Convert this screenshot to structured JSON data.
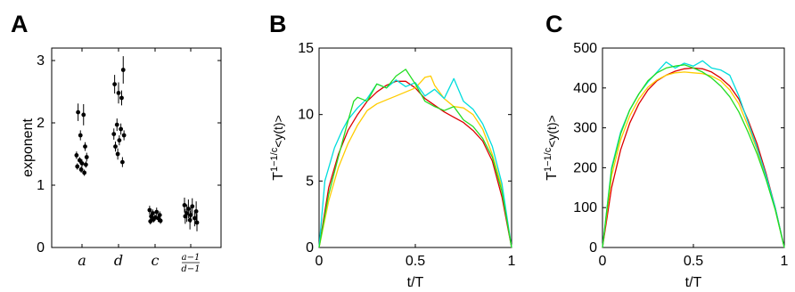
{
  "chart_data": [
    {
      "panel_label": "A",
      "type": "scatter",
      "ylabel": "exponent",
      "ylim": [
        0,
        3.2
      ],
      "yticks": [
        0,
        1,
        2,
        3
      ],
      "categories": [
        "a",
        "d",
        "c",
        "(a-1)/(d-1)"
      ],
      "category_labels": [
        {
          "text": "a"
        },
        {
          "text": "d"
        },
        {
          "text": "c"
        },
        {
          "num": "a−1",
          "den": "d−1"
        }
      ],
      "points": [
        {
          "cat": 0,
          "dx": -0.05,
          "y": 2.17,
          "err": 0.14
        },
        {
          "cat": 0,
          "dx": 0.02,
          "y": 2.13,
          "err": 0.17
        },
        {
          "cat": 0,
          "dx": -0.02,
          "y": 1.8,
          "err": 0.08
        },
        {
          "cat": 0,
          "dx": 0.04,
          "y": 1.62,
          "err": 0.07
        },
        {
          "cat": 0,
          "dx": -0.07,
          "y": 1.48,
          "err": 0.06
        },
        {
          "cat": 0,
          "dx": 0.06,
          "y": 1.45,
          "err": 0.07
        },
        {
          "cat": 0,
          "dx": -0.03,
          "y": 1.4,
          "err": 0.05
        },
        {
          "cat": 0,
          "dx": 0.0,
          "y": 1.35,
          "err": 0.06
        },
        {
          "cat": 0,
          "dx": -0.06,
          "y": 1.3,
          "err": 0.05
        },
        {
          "cat": 0,
          "dx": 0.05,
          "y": 1.33,
          "err": 0.05
        },
        {
          "cat": 0,
          "dx": -0.01,
          "y": 1.25,
          "err": 0.05
        },
        {
          "cat": 0,
          "dx": 0.03,
          "y": 1.2,
          "err": 0.05
        },
        {
          "cat": 1,
          "dx": -0.05,
          "y": 2.62,
          "err": 0.15
        },
        {
          "cat": 1,
          "dx": 0.06,
          "y": 2.85,
          "err": 0.22
        },
        {
          "cat": 1,
          "dx": 0.0,
          "y": 2.48,
          "err": 0.17
        },
        {
          "cat": 1,
          "dx": 0.04,
          "y": 2.4,
          "err": 0.12
        },
        {
          "cat": 1,
          "dx": -0.02,
          "y": 1.97,
          "err": 0.1
        },
        {
          "cat": 1,
          "dx": 0.03,
          "y": 1.9,
          "err": 0.09
        },
        {
          "cat": 1,
          "dx": -0.06,
          "y": 1.82,
          "err": 0.09
        },
        {
          "cat": 1,
          "dx": 0.07,
          "y": 1.8,
          "err": 0.08
        },
        {
          "cat": 1,
          "dx": 0.01,
          "y": 1.72,
          "err": 0.08
        },
        {
          "cat": 1,
          "dx": -0.04,
          "y": 1.62,
          "err": 0.08
        },
        {
          "cat": 1,
          "dx": -0.01,
          "y": 1.5,
          "err": 0.09
        },
        {
          "cat": 1,
          "dx": 0.05,
          "y": 1.37,
          "err": 0.08
        },
        {
          "cat": 2,
          "dx": -0.07,
          "y": 0.6,
          "err": 0.07
        },
        {
          "cat": 2,
          "dx": -0.03,
          "y": 0.55,
          "err": 0.06
        },
        {
          "cat": 2,
          "dx": 0.02,
          "y": 0.57,
          "err": 0.07
        },
        {
          "cat": 2,
          "dx": 0.06,
          "y": 0.52,
          "err": 0.06
        },
        {
          "cat": 2,
          "dx": -0.05,
          "y": 0.5,
          "err": 0.05
        },
        {
          "cat": 2,
          "dx": 0.0,
          "y": 0.48,
          "err": 0.05
        },
        {
          "cat": 2,
          "dx": 0.04,
          "y": 0.47,
          "err": 0.06
        },
        {
          "cat": 2,
          "dx": -0.02,
          "y": 0.45,
          "err": 0.05
        },
        {
          "cat": 2,
          "dx": 0.07,
          "y": 0.43,
          "err": 0.05
        },
        {
          "cat": 2,
          "dx": -0.06,
          "y": 0.42,
          "err": 0.05
        },
        {
          "cat": 3,
          "dx": -0.08,
          "y": 0.68,
          "err": 0.12
        },
        {
          "cat": 3,
          "dx": -0.03,
          "y": 0.62,
          "err": 0.15
        },
        {
          "cat": 3,
          "dx": 0.02,
          "y": 0.66,
          "err": 0.13
        },
        {
          "cat": 3,
          "dx": 0.07,
          "y": 0.58,
          "err": 0.16
        },
        {
          "cat": 3,
          "dx": -0.05,
          "y": 0.55,
          "err": 0.14
        },
        {
          "cat": 3,
          "dx": 0.0,
          "y": 0.52,
          "err": 0.12
        },
        {
          "cat": 3,
          "dx": 0.05,
          "y": 0.47,
          "err": 0.13
        },
        {
          "cat": 3,
          "dx": -0.01,
          "y": 0.44,
          "err": 0.15
        },
        {
          "cat": 3,
          "dx": 0.08,
          "y": 0.4,
          "err": 0.14
        },
        {
          "cat": 3,
          "dx": -0.07,
          "y": 0.5,
          "err": 0.12
        }
      ]
    },
    {
      "panel_label": "B",
      "type": "line",
      "xlabel": "t/T",
      "ylabel_main": "T",
      "ylabel_sup": "1−1/c",
      "ylabel_rest": "<y(t)>",
      "xlim": [
        0,
        1
      ],
      "ylim": [
        0,
        15
      ],
      "xticks": [
        0,
        0.5,
        1
      ],
      "xtick_labels": [
        "0",
        "0.5",
        "1"
      ],
      "yticks": [
        0,
        5,
        10,
        15
      ],
      "series": [
        {
          "color": "#dd0000",
          "x": [
            0,
            0.05,
            0.1,
            0.15,
            0.2,
            0.25,
            0.3,
            0.35,
            0.4,
            0.45,
            0.5,
            0.55,
            0.6,
            0.65,
            0.7,
            0.75,
            0.8,
            0.85,
            0.9,
            0.95,
            1.0
          ],
          "y": [
            0,
            4.5,
            7.0,
            8.8,
            10.0,
            11.0,
            11.7,
            12.2,
            12.5,
            12.5,
            12.0,
            11.2,
            10.7,
            10.2,
            9.8,
            9.4,
            8.8,
            8.0,
            6.5,
            3.8,
            0
          ]
        },
        {
          "color": "#ffcc00",
          "x": [
            0,
            0.05,
            0.1,
            0.15,
            0.2,
            0.25,
            0.3,
            0.35,
            0.4,
            0.45,
            0.5,
            0.55,
            0.58,
            0.6,
            0.65,
            0.7,
            0.75,
            0.8,
            0.85,
            0.9,
            0.95,
            1.0
          ],
          "y": [
            0,
            3.5,
            6.0,
            7.8,
            9.2,
            10.3,
            10.8,
            11.1,
            11.4,
            11.7,
            12.0,
            12.8,
            12.9,
            12.2,
            11.2,
            10.6,
            10.5,
            10.0,
            8.9,
            7.0,
            4.5,
            0
          ]
        },
        {
          "color": "#00dddd",
          "x": [
            0,
            0.03,
            0.08,
            0.12,
            0.15,
            0.2,
            0.25,
            0.3,
            0.35,
            0.4,
            0.45,
            0.5,
            0.55,
            0.6,
            0.65,
            0.7,
            0.75,
            0.8,
            0.85,
            0.9,
            0.95,
            1.0
          ],
          "y": [
            0,
            5.0,
            7.5,
            8.8,
            9.6,
            10.5,
            11.2,
            12.3,
            12.0,
            12.6,
            12.1,
            12.4,
            11.4,
            11.9,
            11.2,
            12.7,
            11.0,
            10.4,
            9.3,
            7.6,
            4.8,
            0
          ]
        },
        {
          "color": "#22dd22",
          "x": [
            0,
            0.05,
            0.1,
            0.15,
            0.18,
            0.2,
            0.25,
            0.3,
            0.35,
            0.4,
            0.45,
            0.5,
            0.55,
            0.6,
            0.65,
            0.7,
            0.75,
            0.8,
            0.85,
            0.9,
            0.95,
            1.0
          ],
          "y": [
            0,
            4.0,
            6.8,
            9.5,
            11.0,
            11.3,
            11.0,
            12.3,
            12.0,
            12.9,
            13.4,
            12.3,
            11.0,
            10.6,
            10.3,
            10.6,
            9.6,
            9.1,
            8.2,
            6.8,
            4.2,
            0
          ]
        }
      ]
    },
    {
      "panel_label": "C",
      "type": "line",
      "xlabel": "t/T",
      "ylabel_main": "T",
      "ylabel_sup": "1−1/c",
      "ylabel_rest": "<y(t)>",
      "xlim": [
        0,
        1
      ],
      "ylim": [
        0,
        500
      ],
      "xticks": [
        0,
        0.5,
        1
      ],
      "xtick_labels": [
        "0",
        "0.5",
        "1"
      ],
      "yticks": [
        0,
        100,
        200,
        300,
        400,
        500
      ],
      "series": [
        {
          "color": "#dd0000",
          "x": [
            0,
            0.05,
            0.1,
            0.15,
            0.2,
            0.25,
            0.3,
            0.35,
            0.4,
            0.45,
            0.5,
            0.55,
            0.6,
            0.65,
            0.7,
            0.75,
            0.8,
            0.85,
            0.9,
            0.95,
            1.0
          ],
          "y": [
            0,
            150,
            245,
            312,
            360,
            395,
            418,
            432,
            442,
            448,
            450,
            448,
            440,
            425,
            405,
            372,
            320,
            260,
            185,
            100,
            0
          ]
        },
        {
          "color": "#ffcc00",
          "x": [
            0,
            0.05,
            0.1,
            0.15,
            0.2,
            0.25,
            0.3,
            0.35,
            0.4,
            0.45,
            0.5,
            0.55,
            0.6,
            0.65,
            0.7,
            0.75,
            0.8,
            0.85,
            0.9,
            0.95,
            1.0
          ],
          "y": [
            0,
            180,
            270,
            330,
            372,
            402,
            420,
            432,
            438,
            440,
            438,
            436,
            430,
            418,
            395,
            360,
            305,
            245,
            175,
            95,
            0
          ]
        },
        {
          "color": "#00dddd",
          "x": [
            0,
            0.05,
            0.1,
            0.15,
            0.2,
            0.25,
            0.3,
            0.35,
            0.4,
            0.45,
            0.5,
            0.55,
            0.6,
            0.65,
            0.7,
            0.75,
            0.8,
            0.85,
            0.9,
            0.95,
            1.0
          ],
          "y": [
            0,
            200,
            290,
            345,
            385,
            415,
            440,
            465,
            450,
            462,
            455,
            468,
            450,
            445,
            432,
            380,
            315,
            250,
            180,
            100,
            0
          ]
        },
        {
          "color": "#22dd22",
          "x": [
            0,
            0.05,
            0.1,
            0.15,
            0.2,
            0.25,
            0.3,
            0.35,
            0.4,
            0.45,
            0.5,
            0.55,
            0.6,
            0.65,
            0.7,
            0.75,
            0.8,
            0.85,
            0.9,
            0.95,
            1.0
          ],
          "y": [
            0,
            195,
            285,
            345,
            385,
            418,
            438,
            450,
            455,
            458,
            450,
            440,
            425,
            405,
            378,
            340,
            290,
            235,
            170,
            95,
            0
          ]
        }
      ]
    }
  ]
}
